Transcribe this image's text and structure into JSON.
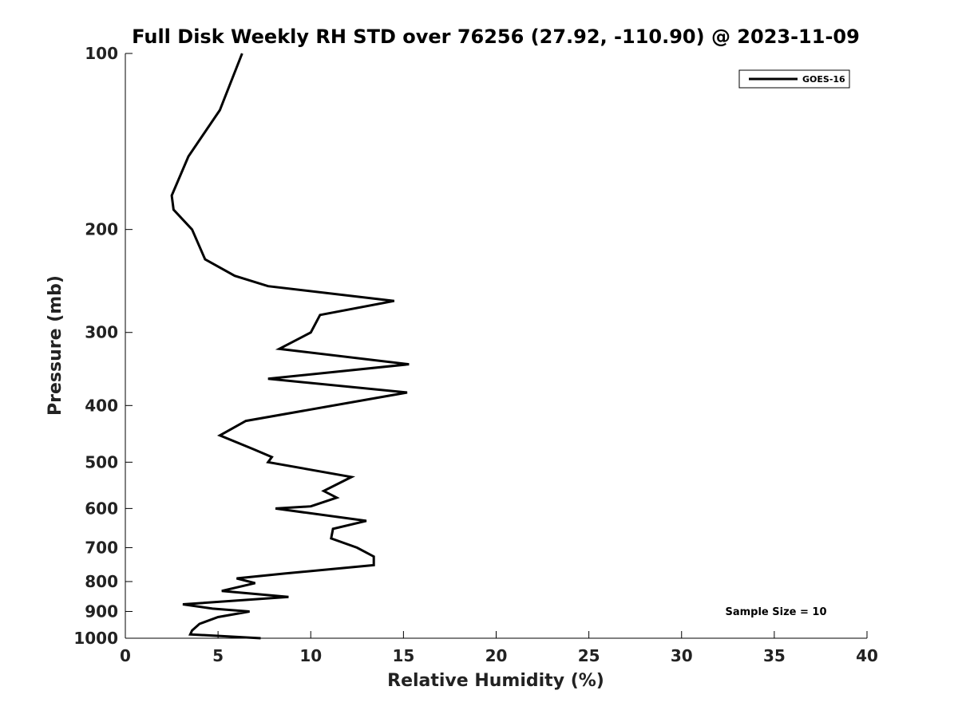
{
  "chart_data": {
    "type": "line",
    "title": "Full Disk Weekly RH STD over 76256 (27.92, -110.90) @ 2023-11-09",
    "xlabel": "Relative Humidity (%)",
    "ylabel": "Pressure (mb)",
    "xlim": [
      0,
      40
    ],
    "ylim": [
      100,
      1000
    ],
    "y_scale": "log",
    "y_inverted": true,
    "x_ticks": [
      0,
      5,
      10,
      15,
      20,
      25,
      30,
      35,
      40
    ],
    "y_ticks": [
      100,
      200,
      300,
      400,
      500,
      600,
      700,
      800,
      900,
      1000
    ],
    "grid": false,
    "legend": "top-right",
    "annotation": "Sample Size = 10",
    "series": [
      {
        "name": "GOES-16",
        "color": "#000000",
        "x": [
          6.3,
          5.1,
          3.4,
          2.5,
          2.6,
          3.6,
          4.3,
          5.9,
          7.7,
          14.5,
          10.5,
          10.0,
          8.3,
          15.3,
          7.7,
          15.2,
          6.5,
          5.1,
          6.9,
          7.9,
          7.7,
          12.2,
          10.7,
          11.4,
          10.0,
          8.1,
          13.0,
          11.2,
          11.1,
          12.5,
          13.4,
          13.4,
          8.6,
          6.0,
          7.0,
          5.2,
          8.8,
          3.1,
          4.7,
          6.7,
          5.0,
          4.0,
          3.6,
          3.5,
          7.3
        ],
        "y": [
          100,
          125,
          150,
          175,
          185,
          200,
          225,
          240,
          250,
          265,
          280,
          300,
          320,
          340,
          360,
          380,
          425,
          450,
          475,
          490,
          500,
          530,
          560,
          575,
          595,
          600,
          630,
          650,
          675,
          700,
          725,
          750,
          775,
          790,
          805,
          830,
          850,
          875,
          890,
          900,
          920,
          945,
          970,
          985,
          1000
        ]
      }
    ]
  }
}
